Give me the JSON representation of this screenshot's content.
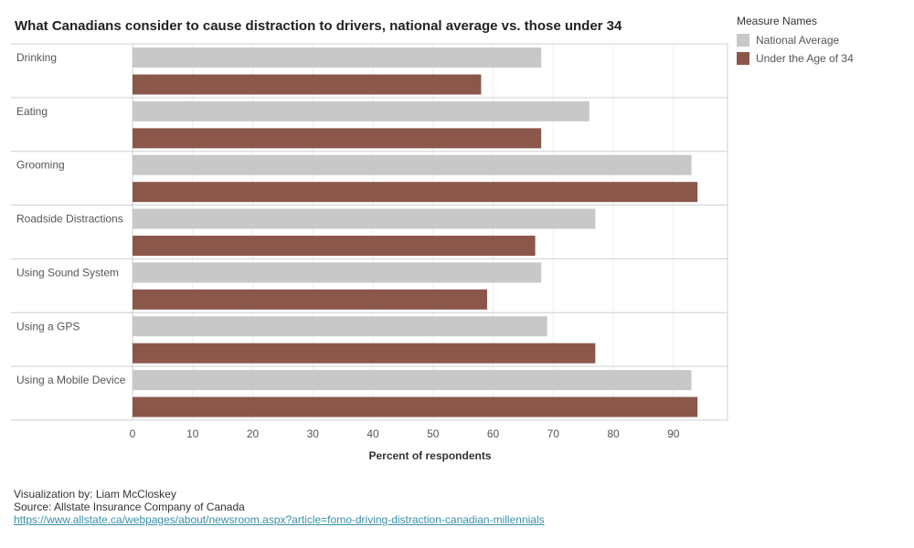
{
  "chart_data": {
    "type": "bar",
    "orientation": "horizontal",
    "title": "What Canadians consider to cause distraction to drivers, national average vs. those under 34",
    "xlabel": "Percent of respondents",
    "ylabel": "",
    "xlim": [
      0,
      99
    ],
    "xticks": [
      0,
      10,
      20,
      30,
      40,
      50,
      60,
      70,
      80,
      90
    ],
    "grid": true,
    "legend_position": "top-right",
    "legend_title": "Measure Names",
    "categories": [
      "Drinking",
      "Eating",
      "Grooming",
      "Roadside Distractions",
      "Using Sound System",
      "Using a GPS",
      "Using a Mobile Device"
    ],
    "series": [
      {
        "name": "National Average",
        "color": "#c8c8c8",
        "values": [
          68,
          76,
          93,
          77,
          68,
          69,
          93
        ]
      },
      {
        "name": "Under the Age of 34",
        "color": "#8b574a",
        "values": [
          58,
          68,
          94,
          67,
          59,
          77,
          94
        ]
      }
    ]
  },
  "footer": {
    "credit": "Visualization by: Liam McCloskey",
    "source": "Source: Allstate Insurance Company of Canada",
    "link": "https://www.allstate.ca/webpages/about/newsroom.aspx?article=fomo-driving-distraction-canadian-millennials"
  }
}
